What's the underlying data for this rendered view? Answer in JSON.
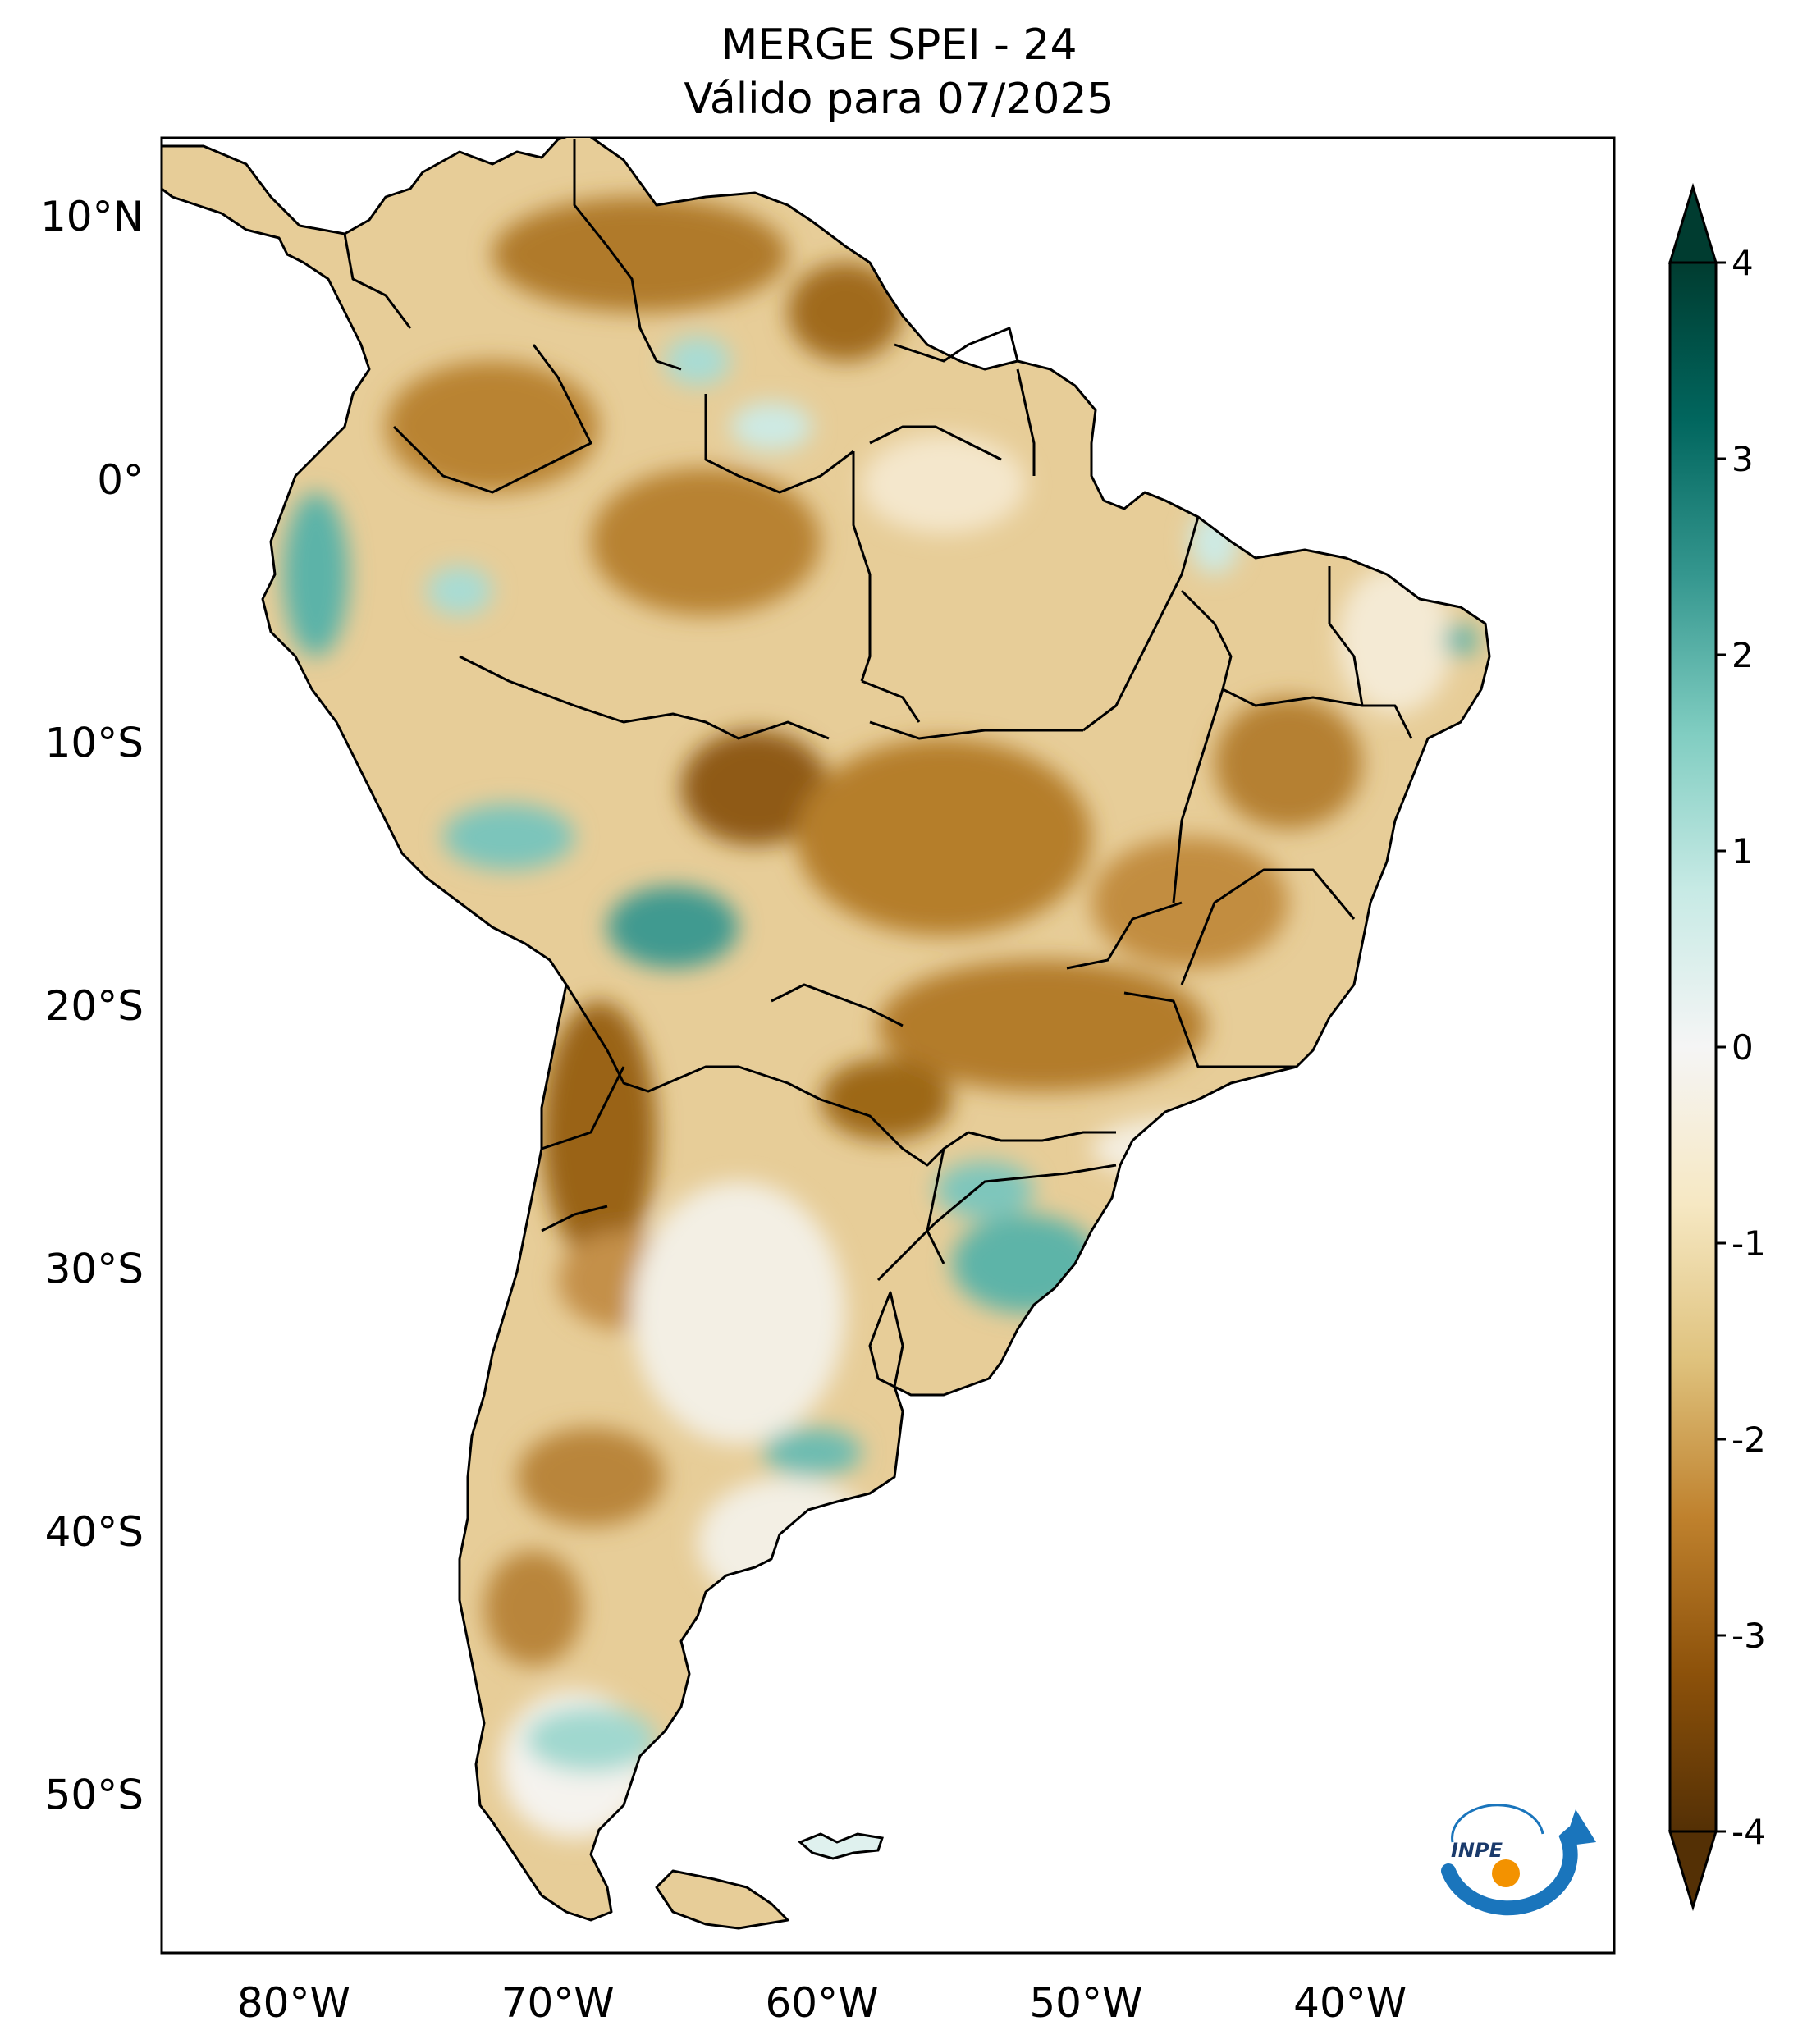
{
  "title": {
    "line1": "MERGE   SPEI - 24",
    "line2": "Válido para 07/2025"
  },
  "map": {
    "projection": "plate-carree",
    "lon_range": [
      -85,
      -30
    ],
    "lat_range": [
      -56,
      13
    ],
    "lat_ticks": [
      {
        "value": 10,
        "label": "10°N"
      },
      {
        "value": 0,
        "label": "0°"
      },
      {
        "value": -10,
        "label": "10°S"
      },
      {
        "value": -20,
        "label": "20°S"
      },
      {
        "value": -30,
        "label": "30°S"
      },
      {
        "value": -40,
        "label": "40°S"
      },
      {
        "value": -50,
        "label": "50°S"
      }
    ],
    "lon_ticks": [
      {
        "value": -80,
        "label": "80°W"
      },
      {
        "value": -70,
        "label": "70°W"
      },
      {
        "value": -60,
        "label": "60°W"
      },
      {
        "value": -50,
        "label": "50°W"
      },
      {
        "value": -40,
        "label": "40°W"
      }
    ],
    "ocean_color": "#ffffff",
    "border_color": "#000000"
  },
  "colorbar": {
    "colormap": "BrBG",
    "range": [
      -4,
      4
    ],
    "extend": "both",
    "ticks": [
      {
        "value": 4,
        "label": "4"
      },
      {
        "value": 3,
        "label": "3"
      },
      {
        "value": 2,
        "label": "2"
      },
      {
        "value": 1,
        "label": "1"
      },
      {
        "value": 0,
        "label": "0"
      },
      {
        "value": -1,
        "label": "-1"
      },
      {
        "value": -2,
        "label": "-2"
      },
      {
        "value": -3,
        "label": "-3"
      },
      {
        "value": -4,
        "label": "-4"
      }
    ],
    "colors": {
      "dry_extreme": "#543005",
      "dry_strong": "#8c510a",
      "dry_moderate": "#bf812d",
      "dry_mild": "#dfc27d",
      "dry_weak": "#f6e8c3",
      "neutral": "#ffffff",
      "wet_weak": "#c7eae5",
      "wet_mild": "#80cdc1",
      "wet_moderate": "#35978f",
      "wet_strong": "#01665e",
      "wet_extreme": "#003c30"
    }
  },
  "logo": {
    "name": "inpe-logo",
    "text": "INPE",
    "colors": {
      "blue": "#1a75bc",
      "orange": "#f39200"
    }
  }
}
